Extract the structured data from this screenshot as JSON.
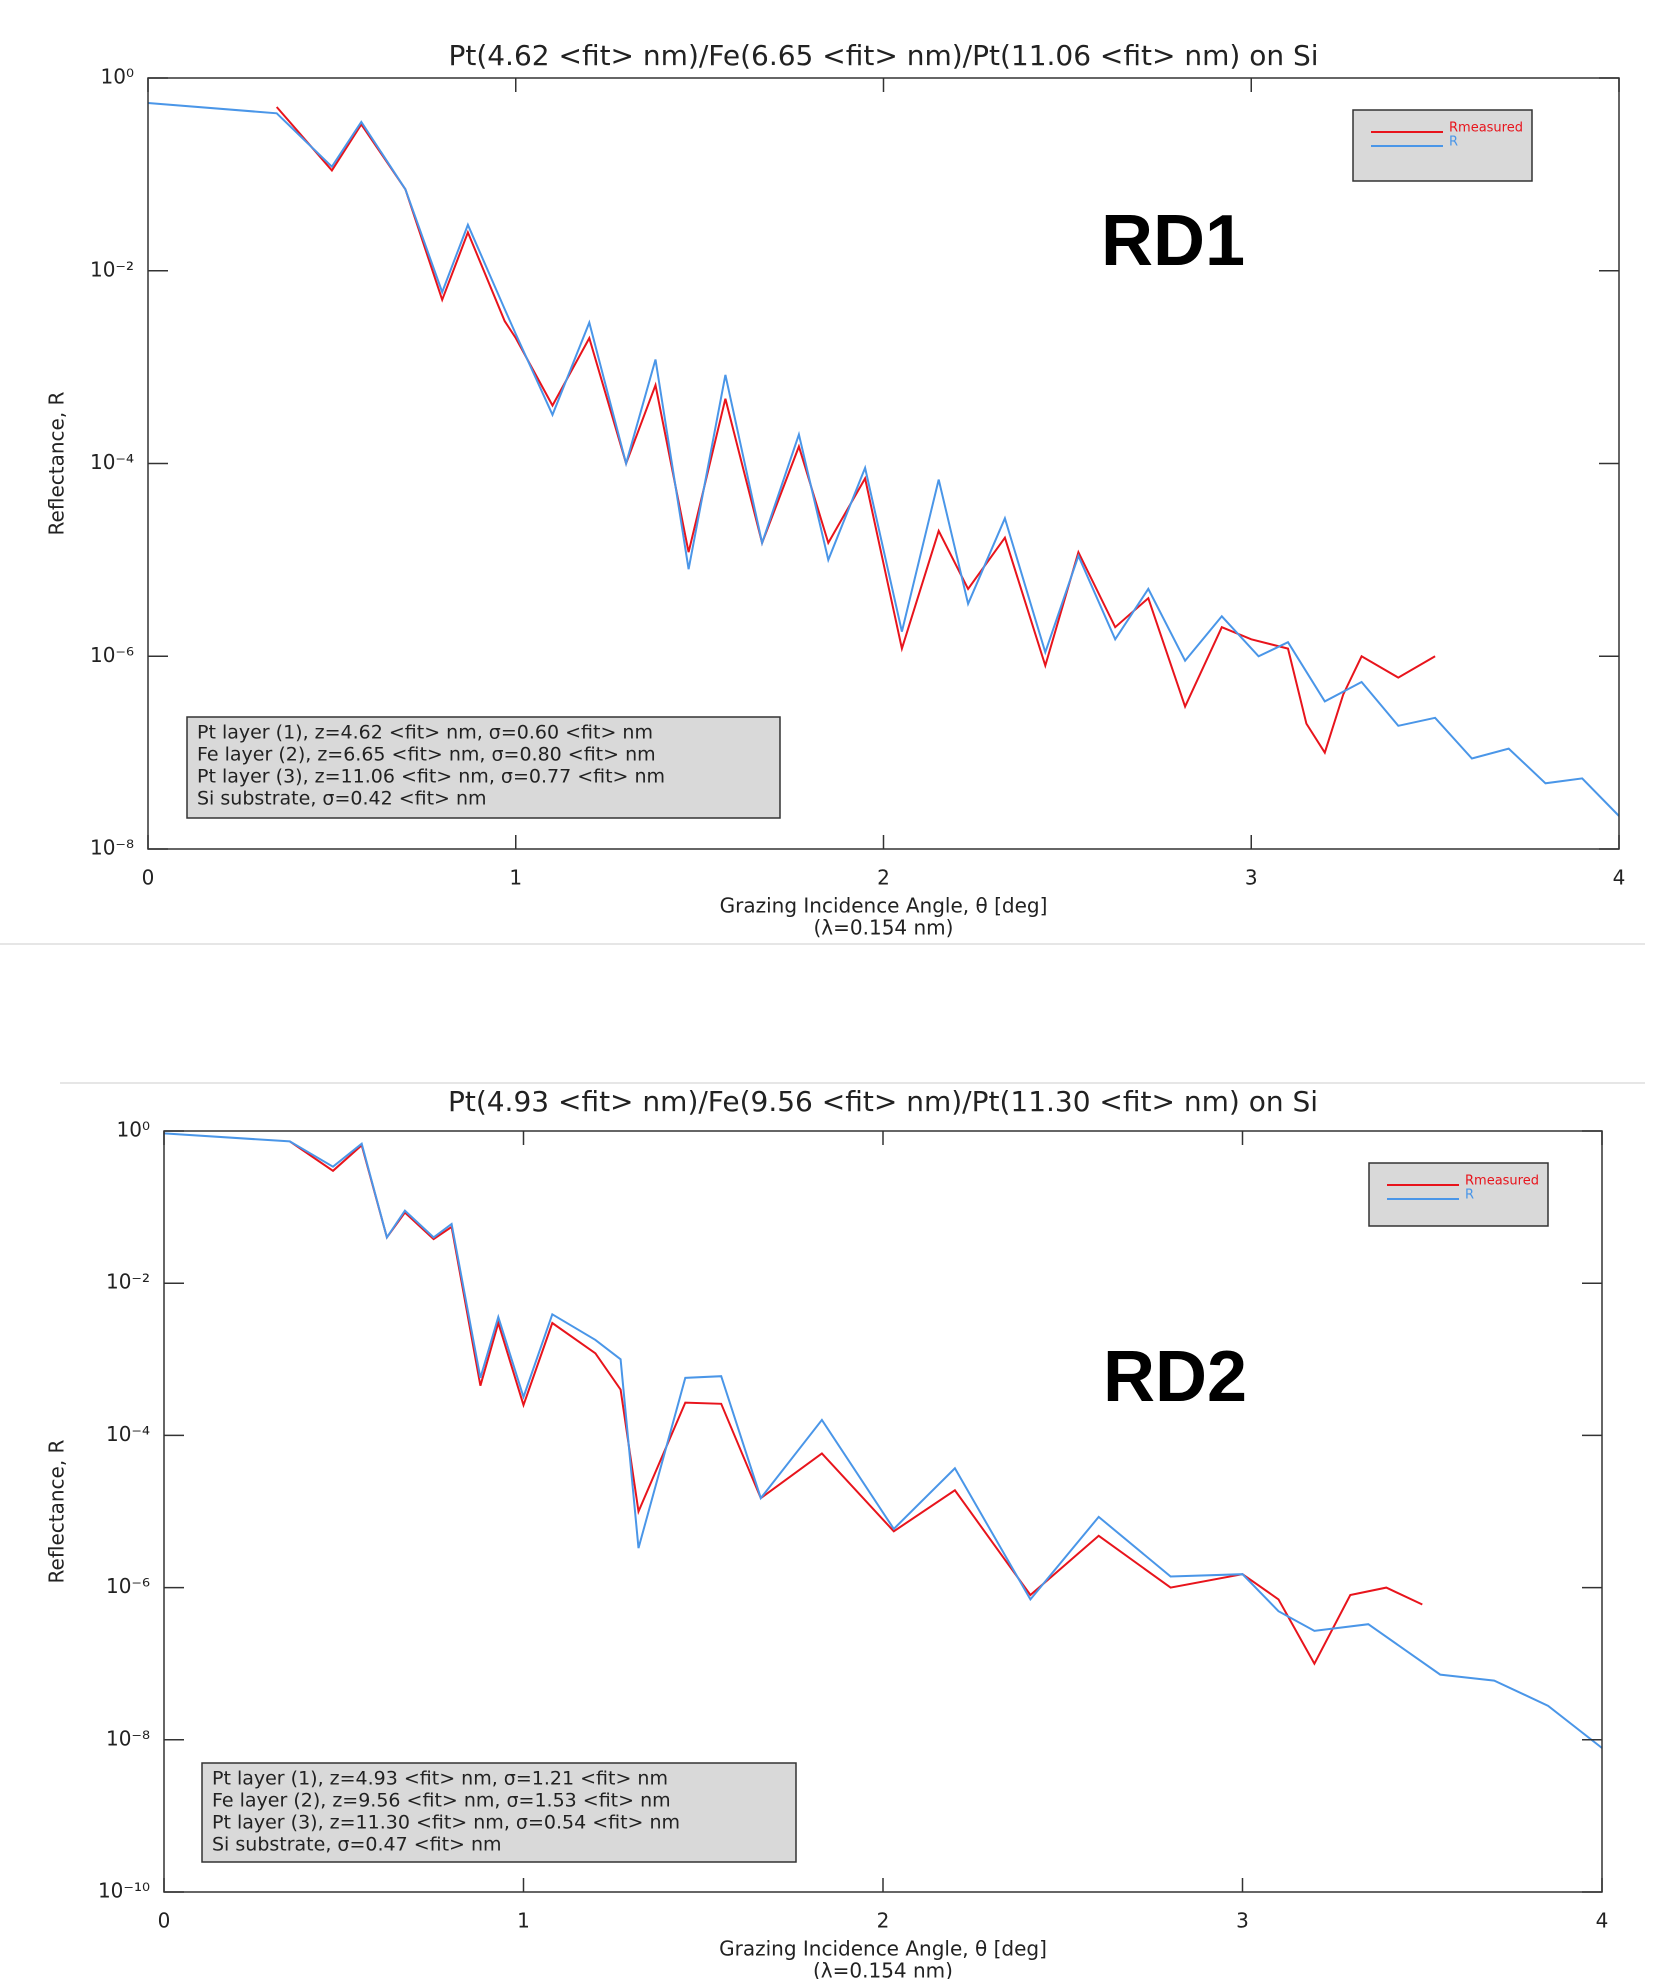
{
  "chart_data": [
    {
      "type": "line",
      "title": "Pt(4.62 <fit> nm)/Fe(6.65 <fit> nm)/Pt(11.06 <fit> nm) on Si",
      "xlabel": "Grazing Incidence Angle, θ [deg]",
      "xlabel_note": "(λ=0.154 nm)",
      "ylabel": "Reflectance, R",
      "label": "RD1",
      "info_box": [
        "Pt layer (1), z=4.62 <fit> nm, σ=0.60 <fit> nm",
        "Fe layer (2), z=6.65 <fit> nm, σ=0.80 <fit> nm",
        "Pt layer (3), z=11.06 <fit> nm, σ=0.77 <fit> nm",
        "Si substrate, σ=0.42 <fit> nm"
      ],
      "xlim": [
        0,
        4
      ],
      "xticks": [
        0,
        1,
        2,
        3,
        4
      ],
      "ylim": [
        1e-08,
        1
      ],
      "log_y": true,
      "yticks": [
        {
          "value": 1,
          "label": "10⁰"
        },
        {
          "value": 0.01,
          "label": "10⁻²"
        },
        {
          "value": 0.0001,
          "label": "10⁻⁴"
        },
        {
          "value": 1e-06,
          "label": "10⁻⁶"
        },
        {
          "value": 1e-08,
          "label": "10⁻⁸"
        }
      ],
      "legend": "upper right",
      "series": [
        {
          "name": "Rmeasured",
          "color": "#e8141c",
          "x": [
            0.35,
            0.5,
            0.58,
            0.7,
            0.8,
            0.87,
            0.97,
            1.0,
            1.1,
            1.2,
            1.3,
            1.38,
            1.47,
            1.57,
            1.67,
            1.77,
            1.85,
            1.95,
            2.05,
            2.15,
            2.23,
            2.33,
            2.44,
            2.53,
            2.63,
            2.72,
            2.82,
            2.92,
            3.0,
            3.1,
            3.15,
            3.2,
            3.25,
            3.3,
            3.4,
            3.5
          ],
          "values": [
            0.5,
            0.11,
            0.33,
            0.07,
            0.005,
            0.025,
            0.003,
            0.002,
            0.0004,
            0.002,
            0.0001,
            0.00065,
            1.2e-05,
            0.00047,
            1.5e-05,
            0.00015,
            1.5e-05,
            7e-05,
            1.2e-06,
            2e-05,
            5e-06,
            1.7e-05,
            8e-07,
            1.2e-05,
            2e-06,
            4e-06,
            3e-07,
            2e-06,
            1.5e-06,
            1.2e-06,
            2e-07,
            1e-07,
            4e-07,
            1e-06,
            6e-07,
            1e-06
          ]
        },
        {
          "name": "R",
          "color": "#4a96e8",
          "x": [
            0,
            0.35,
            0.5,
            0.58,
            0.7,
            0.8,
            0.87,
            0.97,
            1.0,
            1.1,
            1.2,
            1.3,
            1.38,
            1.47,
            1.57,
            1.67,
            1.77,
            1.85,
            1.95,
            2.05,
            2.15,
            2.23,
            2.33,
            2.44,
            2.53,
            2.63,
            2.72,
            2.82,
            2.92,
            3.02,
            3.1,
            3.2,
            3.3,
            3.4,
            3.5,
            3.6,
            3.7,
            3.8,
            3.9,
            4.0
          ],
          "values": [
            0.55,
            0.43,
            0.12,
            0.35,
            0.07,
            0.006,
            0.03,
            0.004,
            0.0022,
            0.00032,
            0.0029,
            0.0001,
            0.0012,
            8e-06,
            0.00083,
            1.5e-05,
            0.0002,
            1e-05,
            9e-05,
            1.8e-06,
            6.8e-05,
            3.5e-06,
            2.7e-05,
            1.1e-06,
            1.1e-05,
            1.5e-06,
            5e-06,
            9e-07,
            2.6e-06,
            1e-06,
            1.4e-06,
            3.4e-07,
            5.4e-07,
            1.9e-07,
            2.3e-07,
            8.7e-08,
            1.1e-07,
            4.8e-08,
            5.4e-08,
            2.2e-08
          ]
        }
      ]
    },
    {
      "type": "line",
      "title": "Pt(4.93 <fit> nm)/Fe(9.56 <fit> nm)/Pt(11.30 <fit> nm) on Si",
      "xlabel": "Grazing Incidence Angle, θ [deg]",
      "xlabel_note": "(λ=0.154 nm)",
      "ylabel": "Reflectance, R",
      "label": "RD2",
      "info_box": [
        "Pt layer (1), z=4.93 <fit> nm, σ=1.21 <fit> nm",
        "Fe layer (2), z=9.56 <fit> nm, σ=1.53 <fit> nm",
        "Pt layer (3), z=11.30 <fit> nm, σ=0.54 <fit> nm",
        "Si substrate, σ=0.47 <fit> nm"
      ],
      "xlim": [
        0,
        4
      ],
      "xticks": [
        0,
        1,
        2,
        3,
        4
      ],
      "ylim": [
        1e-10,
        1
      ],
      "log_y": true,
      "yticks": [
        {
          "value": 1,
          "label": "10⁰"
        },
        {
          "value": 0.01,
          "label": "10⁻²"
        },
        {
          "value": 0.0001,
          "label": "10⁻⁴"
        },
        {
          "value": 1e-06,
          "label": "10⁻⁶"
        },
        {
          "value": 1e-08,
          "label": "10⁻⁸"
        },
        {
          "value": 1e-10,
          "label": "10⁻¹⁰"
        }
      ],
      "legend": "upper right",
      "series": [
        {
          "name": "Rmeasured",
          "color": "#e8141c",
          "x": [
            0.35,
            0.47,
            0.55,
            0.62,
            0.67,
            0.75,
            0.8,
            0.88,
            0.93,
            1.0,
            1.08,
            1.2,
            1.27,
            1.32,
            1.45,
            1.55,
            1.66,
            1.83,
            2.03,
            2.2,
            2.41,
            2.6,
            2.8,
            3.0,
            3.1,
            3.2,
            3.3,
            3.4,
            3.5
          ],
          "values": [
            0.73,
            0.3,
            0.65,
            0.04,
            0.085,
            0.038,
            0.055,
            0.00045,
            0.003,
            0.00025,
            0.003,
            0.0012,
            0.0004,
            1e-05,
            0.00027,
            0.00026,
            1.5e-05,
            5.8e-05,
            5.5e-06,
            1.9e-05,
            8e-07,
            4.8e-06,
            1e-06,
            1.5e-06,
            7e-07,
            1e-07,
            8e-07,
            1e-06,
            6e-07
          ]
        },
        {
          "name": "R",
          "color": "#4a96e8",
          "x": [
            0,
            0.35,
            0.47,
            0.55,
            0.62,
            0.67,
            0.75,
            0.8,
            0.88,
            0.93,
            1.0,
            1.08,
            1.2,
            1.27,
            1.32,
            1.45,
            1.55,
            1.66,
            1.83,
            2.03,
            2.2,
            2.41,
            2.6,
            2.8,
            3.0,
            3.1,
            3.2,
            3.35,
            3.55,
            3.7,
            3.85,
            4.0
          ],
          "values": [
            0.93,
            0.73,
            0.34,
            0.68,
            0.04,
            0.09,
            0.04,
            0.06,
            0.00057,
            0.0036,
            0.00032,
            0.0039,
            0.0018,
            0.001,
            3.3e-06,
            0.00057,
            0.0006,
            1.5e-05,
            0.00016,
            5.9e-06,
            3.7e-05,
            7e-07,
            8.5e-06,
            1.4e-06,
            1.5e-06,
            4.9e-07,
            2.7e-07,
            3.3e-07,
            7.2e-08,
            6e-08,
            2.8e-08,
            7.8e-09
          ]
        }
      ]
    }
  ]
}
